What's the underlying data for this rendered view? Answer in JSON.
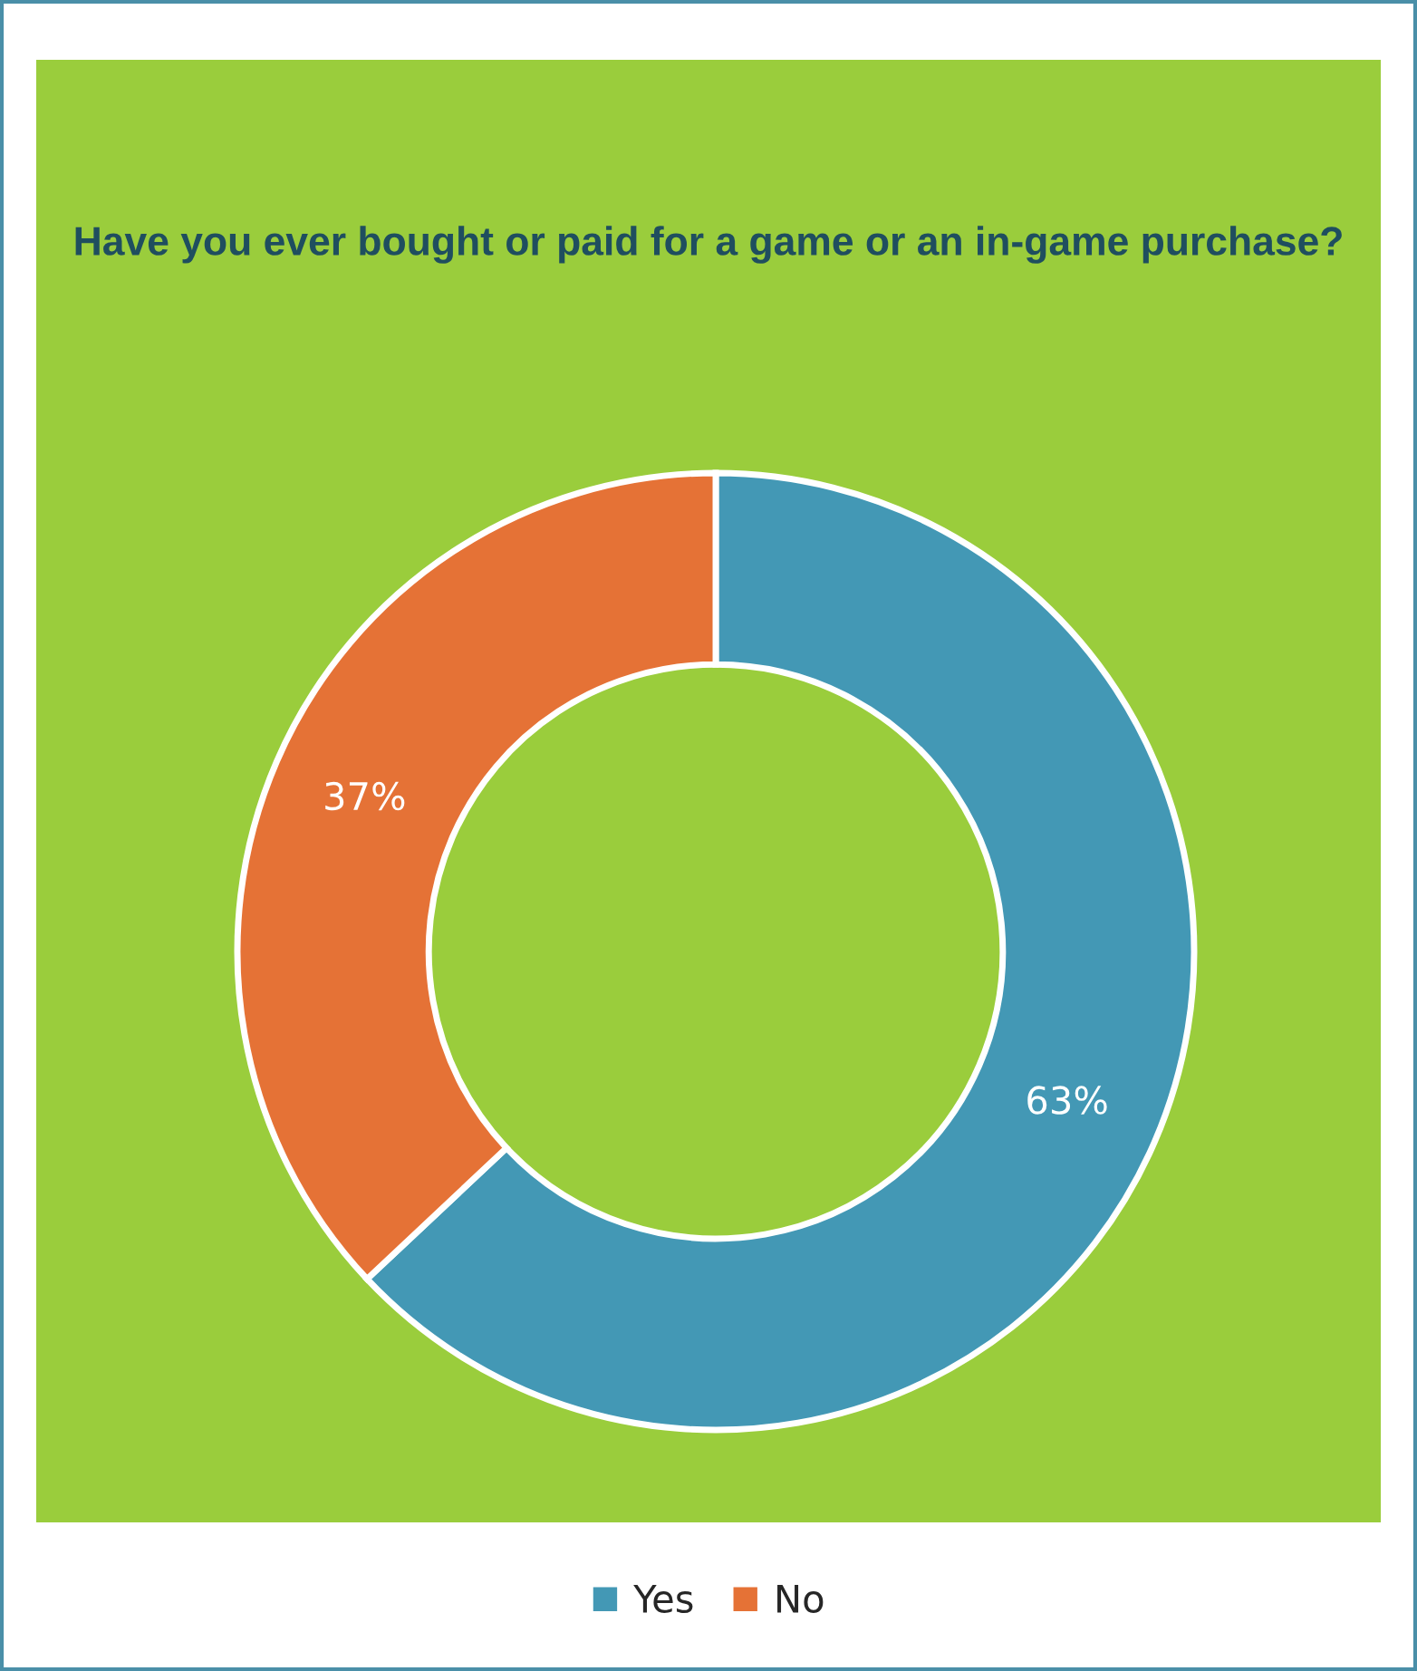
{
  "chart_data": {
    "type": "donut",
    "title": "Have you ever bought or paid for a game or an in-game purchase?",
    "categories": [
      "Yes",
      "No"
    ],
    "values": [
      63,
      37
    ],
    "colors": [
      "#4398b5",
      "#e57236"
    ],
    "value_labels": [
      "63%",
      "37%"
    ],
    "legend": "bottom"
  }
}
